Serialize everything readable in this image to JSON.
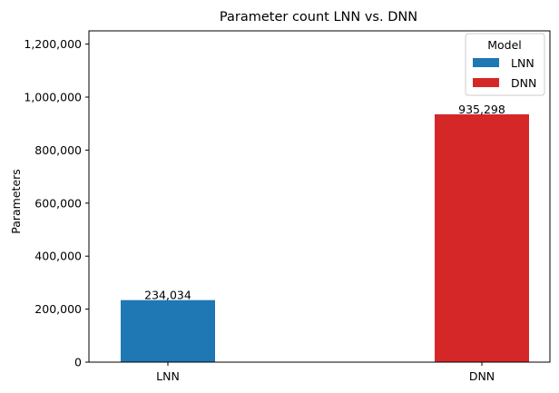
{
  "chart_data": {
    "type": "bar",
    "title": "Parameter count LNN vs. DNN",
    "xlabel": "",
    "ylabel": "Parameters",
    "categories": [
      "LNN",
      "DNN"
    ],
    "values": [
      234034,
      935298
    ],
    "value_labels": [
      "234,034",
      "935,298"
    ],
    "colors": [
      "#1f77b4",
      "#d62728"
    ],
    "ylim": [
      0,
      1250000
    ],
    "yticks": [
      0,
      200000,
      400000,
      600000,
      800000,
      1000000,
      1200000
    ],
    "ytick_labels": [
      "0",
      "200,000",
      "400,000",
      "600,000",
      "800,000",
      "1,000,000",
      "1,200,000"
    ],
    "grid": false,
    "legend": {
      "title": "Model",
      "position": "top-right",
      "entries": [
        {
          "label": "LNN",
          "color": "#1f77b4"
        },
        {
          "label": "DNN",
          "color": "#d62728"
        }
      ]
    }
  }
}
